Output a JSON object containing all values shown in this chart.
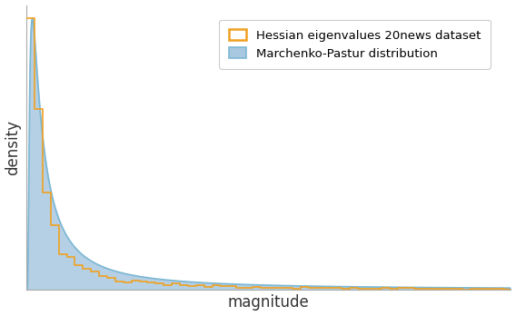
{
  "title": "",
  "xlabel": "magnitude",
  "ylabel": "density",
  "mp_color_fill": "#a8c8e0",
  "mp_color_line": "#7db8d4",
  "hessian_color": "#f0a020",
  "legend_labels": [
    "Hessian eigenvalues 20news dataset",
    "Marchenko-Pastur distribution"
  ],
  "x_min": 0.0,
  "x_max": 10.0,
  "y_min": 0.0,
  "y_max": 1.0,
  "background_color": "#ffffff",
  "spine_color": "#aaaaaa",
  "mp_alpha": 0.4,
  "mp_alpha_val": 1.2,
  "mp_beta": 0.18,
  "hessian_alpha_val": 1.05,
  "hessian_beta": 0.28,
  "hessian_n_bins": 60,
  "hessian_seed": 77
}
